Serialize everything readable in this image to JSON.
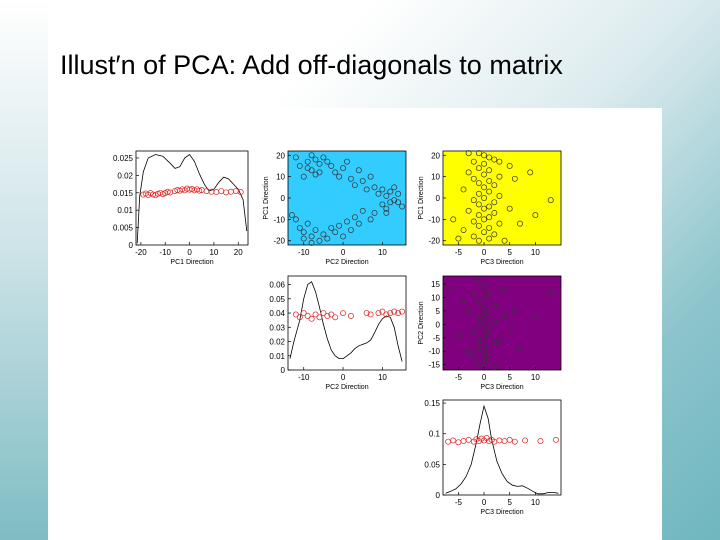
{
  "slide": {
    "title": "Illust′n of PCA: Add off-diagonals to matrix"
  },
  "chart_data": [
    {
      "id": "pc1-density",
      "type": "line",
      "xlabel": "PC1 Direction",
      "ylabel": "",
      "xlim": [
        -22,
        24
      ],
      "ylim": [
        0,
        0.027
      ],
      "xticks": [
        -20,
        -10,
        0,
        10,
        20
      ],
      "yticks": [
        0,
        0.005,
        0.01,
        0.015,
        0.02,
        0.025
      ],
      "ytick_labels": [
        "0",
        "0.005",
        "0.01",
        "0.015",
        "0.02",
        "0.025"
      ],
      "curve": [
        [
          -21.5,
          0.0005
        ],
        [
          -20.5,
          0.014
        ],
        [
          -19,
          0.021
        ],
        [
          -17,
          0.025
        ],
        [
          -14,
          0.026
        ],
        [
          -11,
          0.0255
        ],
        [
          -8,
          0.0235
        ],
        [
          -6,
          0.022
        ],
        [
          -4,
          0.0225
        ],
        [
          -2,
          0.025
        ],
        [
          0,
          0.026
        ],
        [
          2,
          0.024
        ],
        [
          4,
          0.0205
        ],
        [
          6,
          0.0175
        ],
        [
          8,
          0.0155
        ],
        [
          10,
          0.016
        ],
        [
          12,
          0.018
        ],
        [
          14,
          0.0195
        ],
        [
          16,
          0.019
        ],
        [
          18,
          0.0175
        ],
        [
          20,
          0.016
        ],
        [
          22,
          0.013
        ],
        [
          23.5,
          0.004
        ]
      ],
      "jitter_points": [
        [
          -19,
          0.0145
        ],
        [
          -18,
          0.0148
        ],
        [
          -17,
          0.0144
        ],
        [
          -16,
          0.0149
        ],
        [
          -15,
          0.0145
        ],
        [
          -14,
          0.0143
        ],
        [
          -13,
          0.0147
        ],
        [
          -12,
          0.015
        ],
        [
          -11,
          0.0146
        ],
        [
          -10,
          0.0149
        ],
        [
          -9,
          0.0153
        ],
        [
          -8,
          0.0151
        ],
        [
          -6,
          0.0155
        ],
        [
          -5,
          0.0158
        ],
        [
          -4,
          0.0156
        ],
        [
          -3,
          0.016
        ],
        [
          -2,
          0.0157
        ],
        [
          -1,
          0.0162
        ],
        [
          0,
          0.0159
        ],
        [
          1,
          0.0161
        ],
        [
          2,
          0.0157
        ],
        [
          3,
          0.016
        ],
        [
          4,
          0.0156
        ],
        [
          5,
          0.0158
        ],
        [
          7,
          0.0155
        ],
        [
          9,
          0.0153
        ],
        [
          11,
          0.0152
        ],
        [
          13,
          0.0155
        ],
        [
          15,
          0.0151
        ],
        [
          17,
          0.0153
        ],
        [
          19,
          0.0155
        ],
        [
          21,
          0.0152
        ]
      ]
    },
    {
      "id": "pc2-pc1-scatter",
      "type": "scatter",
      "xlabel": "PC2 Direction",
      "ylabel": "PC1 Direction",
      "background": "#33ccff",
      "xlim": [
        -14,
        16
      ],
      "ylim": [
        -22,
        22
      ],
      "xticks": [
        -10,
        0,
        10
      ],
      "yticks": [
        -20,
        -10,
        0,
        10,
        20
      ],
      "points": [
        [
          -12,
          19
        ],
        [
          -11,
          15
        ],
        [
          -9,
          17
        ],
        [
          -8,
          20
        ],
        [
          -7,
          18
        ],
        [
          -6,
          16
        ],
        [
          -5,
          19
        ],
        [
          -4,
          17
        ],
        [
          -8,
          13
        ],
        [
          -7,
          11
        ],
        [
          -6,
          12
        ],
        [
          -10,
          10
        ],
        [
          -9,
          14
        ],
        [
          -3,
          15
        ],
        [
          -2,
          12
        ],
        [
          -1,
          10
        ],
        [
          0,
          14
        ],
        [
          1,
          17
        ],
        [
          2,
          9
        ],
        [
          3,
          6
        ],
        [
          4,
          13
        ],
        [
          5,
          8
        ],
        [
          6,
          4
        ],
        [
          7,
          10
        ],
        [
          8,
          5
        ],
        [
          9,
          2
        ],
        [
          10,
          4
        ],
        [
          11,
          1
        ],
        [
          12,
          3
        ],
        [
          13,
          -1
        ],
        [
          14,
          2
        ],
        [
          15,
          -4
        ],
        [
          12,
          -2
        ],
        [
          11,
          -5
        ],
        [
          10,
          -3
        ],
        [
          8,
          -7
        ],
        [
          7,
          -10
        ],
        [
          5,
          -6
        ],
        [
          4,
          -12
        ],
        [
          3,
          -9
        ],
        [
          2,
          -15
        ],
        [
          1,
          -11
        ],
        [
          0,
          -18
        ],
        [
          -1,
          -13
        ],
        [
          -2,
          -16
        ],
        [
          -3,
          -14
        ],
        [
          -4,
          -19
        ],
        [
          -5,
          -17
        ],
        [
          -6,
          -20
        ],
        [
          -7,
          -15
        ],
        [
          -8,
          -18
        ],
        [
          -9,
          -12
        ],
        [
          -10,
          -16
        ],
        [
          -11,
          -14
        ],
        [
          -12,
          -10
        ],
        [
          -13,
          -8
        ],
        [
          -10,
          -19
        ],
        [
          -8,
          -21
        ],
        [
          13,
          5
        ],
        [
          11,
          -7
        ],
        [
          14,
          -2
        ]
      ]
    },
    {
      "id": "pc3-pc1-scatter",
      "type": "scatter",
      "xlabel": "PC3 Direction",
      "ylabel": "PC1 Direction",
      "background": "#ffff00",
      "xlim": [
        -8,
        15
      ],
      "ylim": [
        -22,
        22
      ],
      "xticks": [
        -5,
        0,
        5,
        10
      ],
      "yticks": [
        -20,
        -10,
        0,
        10,
        20
      ],
      "points": [
        [
          -1,
          21
        ],
        [
          0,
          20
        ],
        [
          1,
          19
        ],
        [
          -2,
          17
        ],
        [
          0,
          16
        ],
        [
          2,
          18
        ],
        [
          -1,
          14
        ],
        [
          1,
          13
        ],
        [
          -3,
          12
        ],
        [
          0,
          11
        ],
        [
          3,
          10
        ],
        [
          -2,
          9
        ],
        [
          1,
          8
        ],
        [
          -1,
          7
        ],
        [
          2,
          6
        ],
        [
          0,
          5
        ],
        [
          -4,
          4
        ],
        [
          1,
          3
        ],
        [
          -1,
          2
        ],
        [
          3,
          1
        ],
        [
          0,
          0
        ],
        [
          -2,
          -1
        ],
        [
          2,
          -2
        ],
        [
          -1,
          -3
        ],
        [
          1,
          -4
        ],
        [
          0,
          -5
        ],
        [
          -3,
          -6
        ],
        [
          2,
          -7
        ],
        [
          -1,
          -8
        ],
        [
          1,
          -9
        ],
        [
          0,
          -10
        ],
        [
          -2,
          -11
        ],
        [
          3,
          -12
        ],
        [
          -1,
          -13
        ],
        [
          1,
          -14
        ],
        [
          -4,
          -15
        ],
        [
          0,
          -16
        ],
        [
          2,
          -17
        ],
        [
          -2,
          -18
        ],
        [
          1,
          -19
        ],
        [
          -1,
          -20
        ],
        [
          5,
          15
        ],
        [
          6,
          9
        ],
        [
          5,
          -5
        ],
        [
          7,
          -12
        ],
        [
          10,
          -8
        ],
        [
          13,
          -1
        ],
        [
          9,
          12
        ],
        [
          -6,
          -10
        ],
        [
          -5,
          -19
        ],
        [
          4,
          -20
        ],
        [
          3,
          17
        ],
        [
          -3,
          21
        ]
      ]
    },
    {
      "id": "pc2-density",
      "type": "line",
      "xlabel": "PC2 Direction",
      "ylabel": "",
      "xlim": [
        -14,
        16
      ],
      "ylim": [
        0,
        0.066
      ],
      "xticks": [
        -10,
        0,
        10
      ],
      "yticks": [
        0,
        0.01,
        0.02,
        0.03,
        0.04,
        0.05,
        0.06
      ],
      "ytick_labels": [
        "0",
        "0.01",
        "0.02",
        "0.03",
        "0.04",
        "0.05",
        "0.06"
      ],
      "curve": [
        [
          -13.5,
          0.008
        ],
        [
          -12.5,
          0.02
        ],
        [
          -11,
          0.035
        ],
        [
          -10,
          0.05
        ],
        [
          -9,
          0.06
        ],
        [
          -8,
          0.062
        ],
        [
          -7,
          0.055
        ],
        [
          -6,
          0.044
        ],
        [
          -5,
          0.032
        ],
        [
          -4,
          0.022
        ],
        [
          -3,
          0.014
        ],
        [
          -2,
          0.01
        ],
        [
          -1,
          0.008
        ],
        [
          0,
          0.008
        ],
        [
          1,
          0.01
        ],
        [
          2,
          0.012
        ],
        [
          3,
          0.015
        ],
        [
          4,
          0.017
        ],
        [
          5,
          0.018
        ],
        [
          6,
          0.019
        ],
        [
          7,
          0.021
        ],
        [
          8,
          0.026
        ],
        [
          9,
          0.032
        ],
        [
          10,
          0.036
        ],
        [
          11,
          0.038
        ],
        [
          12,
          0.037
        ],
        [
          13,
          0.03
        ],
        [
          14,
          0.017
        ],
        [
          15,
          0.006
        ]
      ],
      "jitter_points": [
        [
          -12,
          0.039
        ],
        [
          -11,
          0.037
        ],
        [
          -10,
          0.04
        ],
        [
          -9,
          0.038
        ],
        [
          -8,
          0.036
        ],
        [
          -7,
          0.039
        ],
        [
          -6,
          0.037
        ],
        [
          -5,
          0.04
        ],
        [
          -4,
          0.038
        ],
        [
          -3,
          0.039
        ],
        [
          -2,
          0.037
        ],
        [
          0,
          0.04
        ],
        [
          2,
          0.038
        ],
        [
          6,
          0.04
        ],
        [
          7,
          0.039
        ],
        [
          9,
          0.04
        ],
        [
          10,
          0.041
        ],
        [
          11,
          0.039
        ],
        [
          12,
          0.04
        ],
        [
          13,
          0.041
        ],
        [
          14,
          0.04
        ],
        [
          15,
          0.041
        ]
      ]
    },
    {
      "id": "pc3-pc2-scatter",
      "type": "scatter",
      "xlabel": "PC3 Direction",
      "ylabel": "PC2 Direction",
      "background": "#800080",
      "xlim": [
        -8,
        15
      ],
      "ylim": [
        -17,
        18
      ],
      "xticks": [
        -5,
        0,
        5,
        10
      ],
      "yticks": [
        -15,
        -10,
        -5,
        0,
        5,
        10,
        15
      ],
      "points": [
        [
          -1,
          16
        ],
        [
          0,
          14
        ],
        [
          1,
          12
        ],
        [
          -2,
          11
        ],
        [
          0,
          10
        ],
        [
          -1,
          8
        ],
        [
          2,
          7
        ],
        [
          0,
          6
        ],
        [
          -3,
          5
        ],
        [
          1,
          4
        ],
        [
          -1,
          3
        ],
        [
          0,
          2
        ],
        [
          2,
          1
        ],
        [
          -1,
          0
        ],
        [
          1,
          -1
        ],
        [
          0,
          -2
        ],
        [
          -2,
          -3
        ],
        [
          1,
          -4
        ],
        [
          0,
          -5
        ],
        [
          -1,
          -6
        ],
        [
          2,
          -7
        ],
        [
          0,
          -8
        ],
        [
          -1,
          -9
        ],
        [
          1,
          -10
        ],
        [
          0,
          -11
        ],
        [
          -2,
          -12
        ],
        [
          1,
          -13
        ],
        [
          0,
          -14
        ],
        [
          -1,
          -15
        ],
        [
          3,
          -6
        ],
        [
          4,
          3
        ],
        [
          5,
          -2
        ],
        [
          6,
          5
        ],
        [
          -4,
          9
        ],
        [
          -5,
          -4
        ],
        [
          7,
          -9
        ],
        [
          10,
          2
        ],
        [
          13,
          12
        ],
        [
          -6,
          13
        ],
        [
          4,
          13
        ],
        [
          2,
          -16
        ],
        [
          -3,
          -10
        ]
      ]
    },
    {
      "id": "pc3-density",
      "type": "line",
      "xlabel": "PC3 Direction",
      "ylabel": "",
      "xlim": [
        -8,
        15
      ],
      "ylim": [
        0,
        0.155
      ],
      "xticks": [
        -5,
        0,
        5,
        10
      ],
      "yticks": [
        0,
        0.05,
        0.1,
        0.15
      ],
      "ytick_labels": [
        "0",
        "0.05",
        "0.1",
        "0.15"
      ],
      "curve": [
        [
          -7.5,
          0.003
        ],
        [
          -6.5,
          0.006
        ],
        [
          -5.5,
          0.01
        ],
        [
          -4.5,
          0.018
        ],
        [
          -3.5,
          0.03
        ],
        [
          -2.5,
          0.05
        ],
        [
          -1.5,
          0.085
        ],
        [
          -0.8,
          0.115
        ],
        [
          0,
          0.145
        ],
        [
          0.8,
          0.125
        ],
        [
          1.5,
          0.09
        ],
        [
          2.5,
          0.055
        ],
        [
          3.5,
          0.035
        ],
        [
          4.5,
          0.022
        ],
        [
          5.5,
          0.016
        ],
        [
          6.5,
          0.014
        ],
        [
          7.5,
          0.015
        ],
        [
          8.5,
          0.011
        ],
        [
          9.5,
          0.006
        ],
        [
          10.5,
          0.002
        ],
        [
          11.5,
          0.002
        ],
        [
          12.5,
          0.004
        ],
        [
          13.5,
          0.004
        ],
        [
          14.5,
          0.003
        ]
      ],
      "jitter_points": [
        [
          -7,
          0.087
        ],
        [
          -6,
          0.089
        ],
        [
          -5,
          0.086
        ],
        [
          -4,
          0.088
        ],
        [
          -3,
          0.09
        ],
        [
          -2,
          0.087
        ],
        [
          -1.5,
          0.091
        ],
        [
          -1,
          0.088
        ],
        [
          -0.5,
          0.092
        ],
        [
          0,
          0.089
        ],
        [
          0.5,
          0.093
        ],
        [
          1,
          0.088
        ],
        [
          1.5,
          0.09
        ],
        [
          2,
          0.087
        ],
        [
          3,
          0.089
        ],
        [
          4,
          0.088
        ],
        [
          5,
          0.09
        ],
        [
          6,
          0.087
        ],
        [
          8,
          0.089
        ],
        [
          11,
          0.088
        ],
        [
          14,
          0.09
        ]
      ]
    }
  ]
}
